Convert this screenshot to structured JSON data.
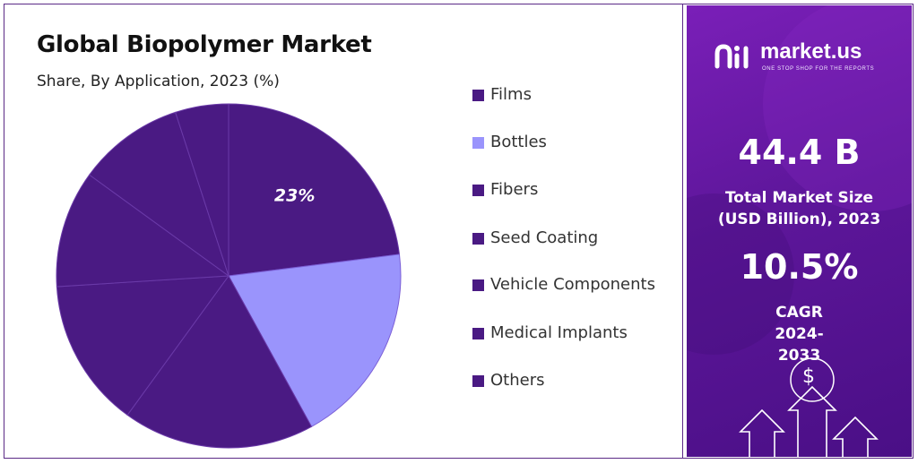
{
  "chart_data": {
    "type": "pie",
    "title": "Global Biopolymer Market",
    "subtitle": "Share, By Application, 2023 (%)",
    "categories": [
      "Films",
      "Bottles",
      "Fibers",
      "Seed Coating",
      "Vehicle Components",
      "Medical Implants",
      "Others"
    ],
    "values": [
      23,
      19,
      18,
      14,
      11,
      10,
      5
    ],
    "data_labels": [
      "23%",
      "",
      "",
      "",
      "",
      "",
      ""
    ],
    "legend_position": "right"
  },
  "legend": [
    {
      "label": "Films",
      "color": "#4a1a83"
    },
    {
      "label": "Bottles",
      "color": "#9a94fc"
    },
    {
      "label": "Fibers",
      "color": "#4a1a83"
    },
    {
      "label": "Seed Coating",
      "color": "#4a1a83"
    },
    {
      "label": "Vehicle Components",
      "color": "#4a1a83"
    },
    {
      "label": "Medical Implants",
      "color": "#4a1a83"
    },
    {
      "label": "Others",
      "color": "#4a1a83"
    }
  ],
  "colors": {
    "primary": "#4a1a83",
    "highlight": "#9a94fc"
  },
  "brand": {
    "name": "market.us",
    "tagline": "ONE STOP SHOP FOR THE REPORTS"
  },
  "metrics": {
    "market_size": {
      "value": "44.4 B",
      "label": "Total Market Size (USD Billion), 2023"
    },
    "cagr": {
      "value": "10.5%",
      "label": "CAGR 2024-2033"
    }
  },
  "decoration": {
    "currency_symbol": "$"
  }
}
